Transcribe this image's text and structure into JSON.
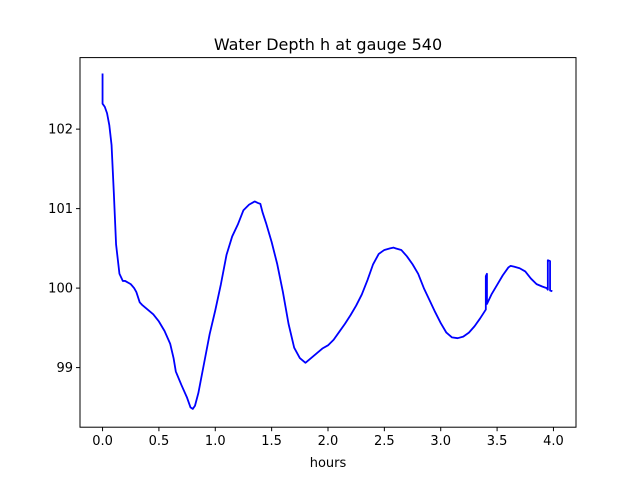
{
  "chart_data": {
    "type": "line",
    "title": "Water Depth h at gauge 540",
    "xlabel": "hours",
    "ylabel": "",
    "xlim": [
      -0.2,
      4.2
    ],
    "ylim": [
      98.25,
      102.9
    ],
    "xticks": [
      0.0,
      0.5,
      1.0,
      1.5,
      2.0,
      2.5,
      3.0,
      3.5,
      4.0
    ],
    "xtick_labels": [
      "0.0",
      "0.5",
      "1.0",
      "1.5",
      "2.0",
      "2.5",
      "3.0",
      "3.5",
      "4.0"
    ],
    "yticks": [
      99,
      100,
      101,
      102
    ],
    "ytick_labels": [
      "99",
      "100",
      "101",
      "102"
    ],
    "grid": false,
    "series": [
      {
        "color": "#0000ff",
        "x": [
          0.0,
          0.0,
          0.02,
          0.04,
          0.06,
          0.08,
          0.1,
          0.12,
          0.15,
          0.18,
          0.2,
          0.25,
          0.28,
          0.3,
          0.33,
          0.35,
          0.4,
          0.45,
          0.5,
          0.55,
          0.6,
          0.63,
          0.65,
          0.7,
          0.75,
          0.78,
          0.8,
          0.82,
          0.85,
          0.9,
          0.95,
          1.0,
          1.05,
          1.1,
          1.15,
          1.2,
          1.25,
          1.3,
          1.35,
          1.38,
          1.4,
          1.42,
          1.45,
          1.5,
          1.55,
          1.6,
          1.65,
          1.7,
          1.75,
          1.8,
          1.85,
          1.9,
          1.95,
          2.0,
          2.05,
          2.1,
          2.15,
          2.2,
          2.25,
          2.3,
          2.35,
          2.4,
          2.45,
          2.5,
          2.55,
          2.58,
          2.6,
          2.65,
          2.7,
          2.75,
          2.8,
          2.85,
          2.9,
          2.95,
          3.0,
          3.05,
          3.1,
          3.15,
          3.2,
          3.25,
          3.3,
          3.35,
          3.4,
          3.4,
          3.41,
          3.41,
          3.45,
          3.5,
          3.55,
          3.6,
          3.62,
          3.65,
          3.7,
          3.75,
          3.8,
          3.85,
          3.9,
          3.94,
          3.95,
          3.95,
          3.97,
          3.97,
          3.99
        ],
        "y": [
          102.7,
          102.32,
          102.28,
          102.2,
          102.05,
          101.8,
          101.2,
          100.55,
          100.18,
          100.09,
          100.09,
          100.05,
          100.0,
          99.95,
          99.82,
          99.79,
          99.73,
          99.67,
          99.58,
          99.46,
          99.3,
          99.12,
          98.95,
          98.78,
          98.62,
          98.5,
          98.48,
          98.52,
          98.68,
          99.05,
          99.42,
          99.72,
          100.05,
          100.42,
          100.65,
          100.8,
          100.98,
          101.05,
          101.09,
          101.07,
          101.06,
          100.95,
          100.82,
          100.58,
          100.3,
          99.95,
          99.55,
          99.25,
          99.12,
          99.06,
          99.12,
          99.18,
          99.24,
          99.28,
          99.35,
          99.45,
          99.55,
          99.66,
          99.78,
          99.92,
          100.1,
          100.3,
          100.43,
          100.48,
          100.5,
          100.51,
          100.5,
          100.48,
          100.4,
          100.3,
          100.18,
          100.0,
          99.85,
          99.7,
          99.56,
          99.44,
          99.38,
          99.37,
          99.39,
          99.44,
          99.52,
          99.62,
          99.73,
          100.15,
          100.18,
          99.8,
          99.92,
          100.04,
          100.16,
          100.26,
          100.28,
          100.27,
          100.25,
          100.21,
          100.12,
          100.05,
          100.02,
          100.0,
          99.98,
          100.35,
          100.34,
          99.97,
          99.96
        ]
      }
    ]
  }
}
